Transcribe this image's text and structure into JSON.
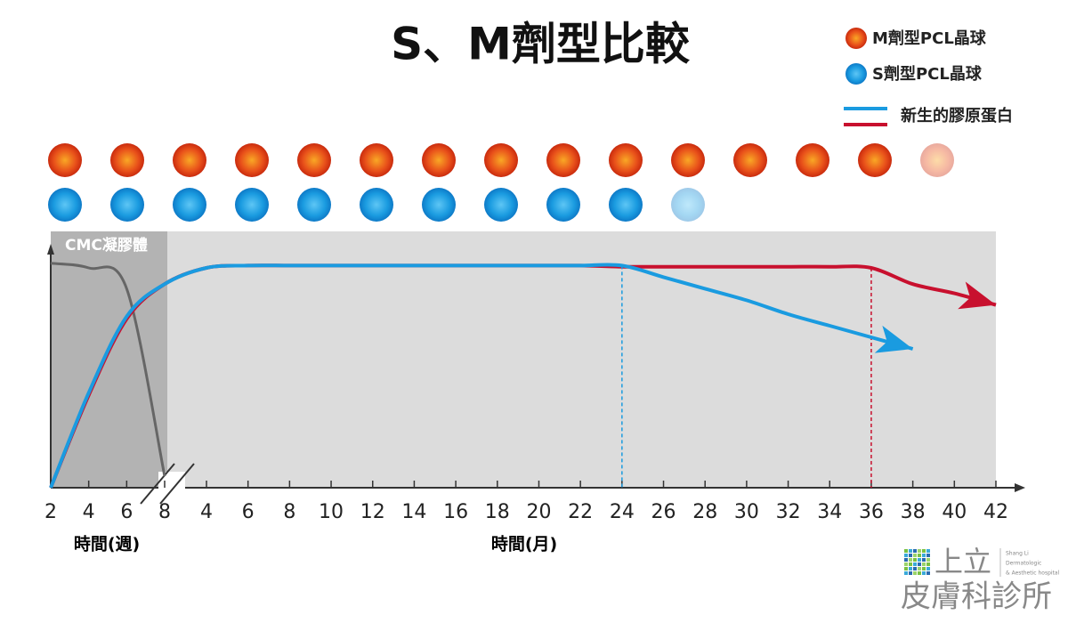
{
  "chart_data": {
    "type": "line",
    "title": "S、M劑型比較",
    "legend": {
      "sphere_entries": [
        "M劑型PCL晶球",
        "S劑型PCL晶球"
      ],
      "line_entry": "新生的膠原蛋白"
    },
    "spheres": [
      {
        "color": "#e8401a",
        "count": 15
      },
      {
        "color": "#1a9be0",
        "count": 11
      }
    ],
    "region_label": "CMC凝膠體",
    "categories": [
      2,
      4,
      6,
      8,
      4,
      6,
      8,
      10,
      12,
      14,
      16,
      18,
      20,
      22,
      24,
      26,
      28,
      30,
      32,
      34,
      36,
      38,
      40,
      42
    ],
    "x_axis_labels": [
      "時間(週)",
      "時間(月)"
    ],
    "ylim": [
      0,
      100
    ],
    "series": [
      {
        "name": "CMC",
        "color": "#666666",
        "values": [
          97,
          95,
          86,
          5,
          null,
          null,
          null,
          null,
          null,
          null,
          null,
          null,
          null,
          null,
          null,
          null,
          null,
          null,
          null,
          null,
          null,
          null,
          null,
          null
        ]
      },
      {
        "name": "M",
        "color": "#c8102e",
        "values": [
          0,
          40,
          73,
          88,
          95,
          96,
          96,
          96,
          96,
          96,
          96,
          96,
          96,
          96,
          95.5,
          95.5,
          95.5,
          95.5,
          95.5,
          95.5,
          95,
          88,
          84,
          79
        ],
        "dashed_at": 36
      },
      {
        "name": "S",
        "color": "#1a9be0",
        "values": [
          0,
          41,
          74,
          88,
          95,
          96,
          96,
          96,
          96,
          96,
          96,
          96,
          96,
          96,
          96,
          91,
          86,
          81,
          75,
          70,
          65,
          60,
          null,
          null
        ],
        "dashed_at": 24
      }
    ],
    "logo": {
      "name_top": "上立",
      "name_bottom": "皮膚科診所",
      "small": [
        "Shang Li",
        "Dermatologic",
        "& Aesthetic hospital"
      ]
    }
  }
}
